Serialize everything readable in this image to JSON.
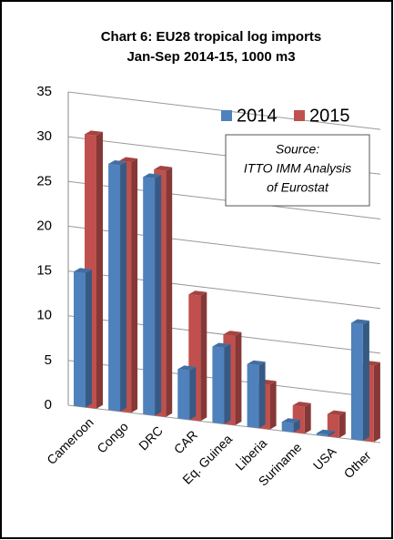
{
  "chart_data": {
    "type": "bar3d",
    "title": "Chart 6: EU28 tropical log imports",
    "subtitle": "Jan-Sep 2014-15, 1000 m3",
    "annotation": [
      "Source:",
      "ITTO IMM Analysis",
      "of Eurostat"
    ],
    "categories": [
      "Cameroon",
      "Congo",
      "DRC",
      "CAR",
      "Eq. Guinea",
      "Liberia",
      "Suriname",
      "USA",
      "Other"
    ],
    "series": [
      {
        "name": "2014",
        "color": "#4f81bd",
        "values": [
          15,
          27.5,
          26.5,
          5.5,
          8.5,
          7,
          1,
          0.2,
          13
        ]
      },
      {
        "name": "2015",
        "color": "#c0504d",
        "values": [
          30.5,
          28,
          27.5,
          14,
          10,
          5,
          3,
          2.5,
          8.5
        ]
      }
    ],
    "ylim": [
      0,
      35
    ],
    "yticks": [
      0,
      5,
      10,
      15,
      20,
      25,
      30,
      35
    ],
    "grid": true,
    "legend": "top-right"
  }
}
